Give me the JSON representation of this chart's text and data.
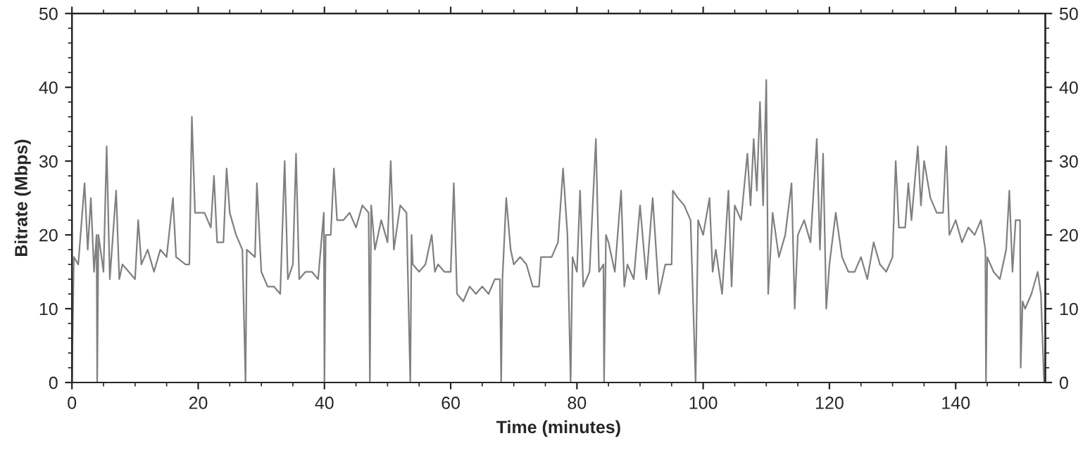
{
  "chart_data": {
    "type": "line",
    "xlabel": "Time (minutes)",
    "ylabel": "Bitrate (Mbps)",
    "xlim": [
      0,
      154.2
    ],
    "xticks": [
      0,
      20,
      40,
      60,
      80,
      100,
      120,
      140
    ],
    "ylim": [
      0,
      50
    ],
    "yticks": [
      0,
      10,
      20,
      30,
      40,
      50
    ],
    "y2lim": [
      0,
      50
    ],
    "y2ticks": [
      0,
      10,
      20,
      30,
      40,
      50
    ],
    "marker": "none",
    "line_style": "solid",
    "series": [
      {
        "color": "#808080",
        "x": [
          0,
          0.3,
          1,
          2,
          2.5,
          3,
          3.5,
          3.9,
          4.0,
          4.2,
          5,
          5.5,
          6,
          7,
          7.5,
          8,
          9,
          10,
          10.5,
          11,
          12,
          13,
          14,
          15,
          16,
          16.5,
          18,
          18.6,
          19,
          19.5,
          21,
          22,
          22.5,
          23,
          24,
          24.5,
          25,
          26,
          27,
          27.5,
          27.7,
          29,
          29.3,
          30,
          31,
          32,
          33,
          33.7,
          34.2,
          35,
          35.5,
          36,
          37,
          38,
          39,
          39.9,
          40,
          40.2,
          41,
          41.5,
          42,
          43,
          44,
          45,
          46,
          47,
          47.2,
          47.4,
          48,
          49,
          50,
          50.5,
          51,
          52,
          53,
          53.6,
          53.8,
          54,
          55,
          56,
          57,
          57.5,
          58,
          59,
          60,
          60.5,
          61,
          62,
          63,
          64,
          65,
          66,
          67,
          67.8,
          68,
          68.2,
          68.8,
          69.5,
          70,
          71,
          72,
          73,
          74,
          74.3,
          75,
          76,
          77,
          77.8,
          78.5,
          79,
          79.3,
          80,
          80.5,
          81,
          82,
          83,
          83.5,
          84.2,
          84.3,
          84.6,
          85,
          86,
          87,
          87.5,
          88,
          89,
          90,
          91,
          92,
          93,
          94,
          95,
          95.2,
          96,
          97,
          98,
          98.8,
          99.2,
          100,
          101,
          101.5,
          102,
          103,
          104,
          104.5,
          105,
          106,
          107,
          107.5,
          108,
          108.5,
          109,
          109.5,
          110,
          110.3,
          111,
          112,
          113,
          114,
          114.5,
          115,
          116,
          117,
          118,
          118.5,
          119,
          119.5,
          120,
          121,
          122,
          123,
          124,
          125,
          126,
          127,
          128,
          129,
          130,
          130.5,
          131,
          132,
          132.5,
          133,
          134,
          134.5,
          135,
          136,
          137,
          138,
          138.5,
          139,
          140,
          141,
          142,
          143,
          144,
          144.7,
          144.8,
          145,
          146,
          147,
          148,
          148.5,
          149,
          149.5,
          150.2,
          150.3,
          150.6,
          151,
          152,
          153,
          153.5,
          154
        ],
        "values": [
          0,
          17,
          16,
          27,
          18,
          25,
          15,
          20,
          0,
          20,
          15,
          32,
          14,
          26,
          14,
          16,
          15,
          14,
          22,
          16,
          18,
          15,
          18,
          17,
          25,
          17,
          16,
          16,
          36,
          23,
          23,
          21,
          28,
          19,
          19,
          29,
          23,
          20,
          18,
          0,
          18,
          17,
          27,
          15,
          13,
          13,
          12,
          30,
          14,
          16,
          31,
          14,
          15,
          15,
          14,
          23,
          0,
          20,
          20,
          29,
          22,
          22,
          23,
          21,
          24,
          23,
          0,
          24,
          18,
          22,
          19,
          30,
          18,
          24,
          23,
          0,
          20,
          16,
          15,
          16,
          20,
          15,
          16,
          15,
          15,
          27,
          12,
          11,
          13,
          12,
          13,
          12,
          14,
          14,
          0,
          14,
          25,
          18,
          16,
          17,
          16,
          13,
          13,
          17,
          17,
          17,
          19,
          29,
          20,
          0,
          17,
          15,
          26,
          13,
          15,
          33,
          15,
          16,
          0,
          20,
          19,
          15,
          26,
          13,
          16,
          14,
          24,
          14,
          25,
          12,
          16,
          16,
          26,
          25,
          24,
          22,
          0,
          22,
          20,
          25,
          15,
          18,
          12,
          26,
          13,
          24,
          22,
          31,
          24,
          33,
          26,
          38,
          24,
          41,
          12,
          23,
          17,
          20,
          27,
          10,
          20,
          22,
          19,
          33,
          18,
          31,
          10,
          16,
          23,
          17,
          15,
          15,
          17,
          14,
          19,
          16,
          15,
          17,
          30,
          21,
          21,
          27,
          22,
          32,
          24,
          30,
          25,
          23,
          23,
          32,
          20,
          22,
          19,
          21,
          20,
          22,
          18,
          0,
          17,
          15,
          14,
          18,
          26,
          15,
          22,
          22,
          2,
          11,
          10,
          12,
          15,
          12,
          0
        ]
      }
    ]
  }
}
